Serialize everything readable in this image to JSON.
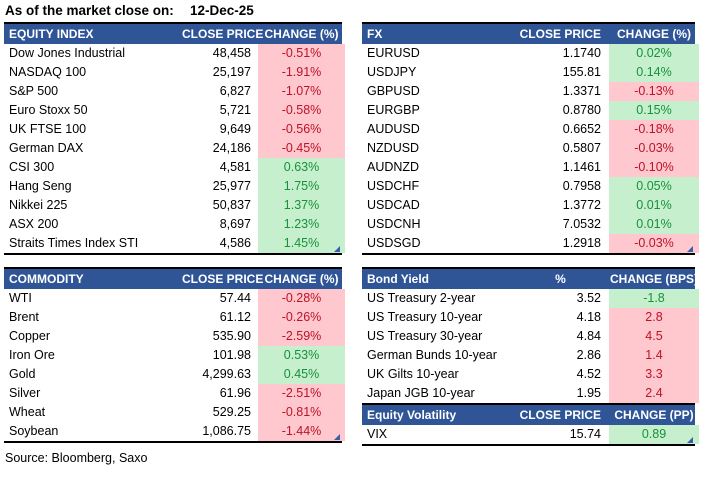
{
  "title": {
    "label": "As of the market close on:",
    "date": "12-Dec-25"
  },
  "source": "Source: Bloomberg, Saxo",
  "colors": {
    "header_bg": "#2F5597",
    "positive_bg": "#C6EFCE",
    "positive_text": "#17913A",
    "negative_bg": "#FFC7CE",
    "negative_text": "#BE1226",
    "corner": "#3B5EAC"
  },
  "tables": {
    "equity_index": {
      "headers": [
        "EQUITY INDEX",
        "CLOSE PRICE",
        "CHANGE (%)"
      ],
      "rows": [
        {
          "name": "Dow Jones Industrial",
          "value": "48,458",
          "change": "-0.51%",
          "tone": "bad"
        },
        {
          "name": "NASDAQ 100",
          "value": "25,197",
          "change": "-1.91%",
          "tone": "bad"
        },
        {
          "name": "S&P 500",
          "value": "6,827",
          "change": "-1.07%",
          "tone": "bad"
        },
        {
          "name": "Euro Stoxx 50",
          "value": "5,721",
          "change": "-0.58%",
          "tone": "bad"
        },
        {
          "name": "UK FTSE 100",
          "value": "9,649",
          "change": "-0.56%",
          "tone": "bad"
        },
        {
          "name": "German DAX",
          "value": "24,186",
          "change": "-0.45%",
          "tone": "bad"
        },
        {
          "name": "CSI 300",
          "value": "4,581",
          "change": "0.63%",
          "tone": "good"
        },
        {
          "name": "Hang Seng",
          "value": "25,977",
          "change": "1.75%",
          "tone": "good"
        },
        {
          "name": "Nikkei 225",
          "value": "50,837",
          "change": "1.37%",
          "tone": "good"
        },
        {
          "name": "ASX 200",
          "value": "8,697",
          "change": "1.23%",
          "tone": "good"
        },
        {
          "name": "Straits Times Index STI",
          "value": "4,586",
          "change": "1.45%",
          "tone": "good"
        }
      ]
    },
    "fx": {
      "headers": [
        "FX",
        "CLOSE PRICE",
        "CHANGE (%)"
      ],
      "rows": [
        {
          "name": "EURUSD",
          "value": "1.1740",
          "change": "0.02%",
          "tone": "good"
        },
        {
          "name": "USDJPY",
          "value": "155.81",
          "change": "0.14%",
          "tone": "good"
        },
        {
          "name": "GBPUSD",
          "value": "1.3371",
          "change": "-0.13%",
          "tone": "bad"
        },
        {
          "name": "EURGBP",
          "value": "0.8780",
          "change": "0.15%",
          "tone": "good"
        },
        {
          "name": "AUDUSD",
          "value": "0.6652",
          "change": "-0.18%",
          "tone": "bad"
        },
        {
          "name": "NZDUSD",
          "value": "0.5807",
          "change": "-0.03%",
          "tone": "bad"
        },
        {
          "name": "AUDNZD",
          "value": "1.1461",
          "change": "-0.10%",
          "tone": "bad"
        },
        {
          "name": "USDCHF",
          "value": "0.7958",
          "change": "0.05%",
          "tone": "good"
        },
        {
          "name": "USDCAD",
          "value": "1.3772",
          "change": "0.01%",
          "tone": "good"
        },
        {
          "name": "USDCNH",
          "value": "7.0532",
          "change": "0.01%",
          "tone": "good"
        },
        {
          "name": "USDSGD",
          "value": "1.2918",
          "change": "-0.03%",
          "tone": "bad"
        }
      ]
    },
    "commodity": {
      "headers": [
        "COMMODITY",
        "CLOSE PRICE",
        "CHANGE (%)"
      ],
      "rows": [
        {
          "name": "WTI",
          "value": "57.44",
          "change": "-0.28%",
          "tone": "bad"
        },
        {
          "name": "Brent",
          "value": "61.12",
          "change": "-0.26%",
          "tone": "bad"
        },
        {
          "name": "Copper",
          "value": "535.90",
          "change": "-2.59%",
          "tone": "bad"
        },
        {
          "name": "Iron Ore",
          "value": "101.98",
          "change": "0.53%",
          "tone": "good"
        },
        {
          "name": "Gold",
          "value": "4,299.63",
          "change": "0.45%",
          "tone": "good"
        },
        {
          "name": "Silver",
          "value": "61.96",
          "change": "-2.51%",
          "tone": "bad"
        },
        {
          "name": "Wheat",
          "value": "529.25",
          "change": "-0.81%",
          "tone": "bad"
        },
        {
          "name": "Soybean",
          "value": "1,086.75",
          "change": "-1.44%",
          "tone": "bad"
        }
      ]
    },
    "bond_yield": {
      "headers": [
        "Bond Yield",
        "%",
        "CHANGE (BPS)"
      ],
      "rows": [
        {
          "name": "US Treasury 2-year",
          "value": "3.52",
          "change": "-1.8",
          "tone": "good"
        },
        {
          "name": "US Treasury 10-year",
          "value": "4.18",
          "change": "2.8",
          "tone": "bad"
        },
        {
          "name": "US Treasury 30-year",
          "value": "4.84",
          "change": "4.5",
          "tone": "bad"
        },
        {
          "name": "German Bunds 10-year",
          "value": "2.86",
          "change": "1.4",
          "tone": "bad"
        },
        {
          "name": "UK Gilts 10-year",
          "value": "4.52",
          "change": "3.3",
          "tone": "bad"
        },
        {
          "name": "Japan JGB 10-year",
          "value": "1.95",
          "change": "2.4",
          "tone": "bad"
        }
      ]
    },
    "equity_volatility": {
      "headers": [
        "Equity Volatility",
        "CLOSE PRICE",
        "CHANGE (PP)"
      ],
      "rows": [
        {
          "name": "VIX",
          "value": "15.74",
          "change": "0.89",
          "tone": "good"
        }
      ]
    }
  }
}
